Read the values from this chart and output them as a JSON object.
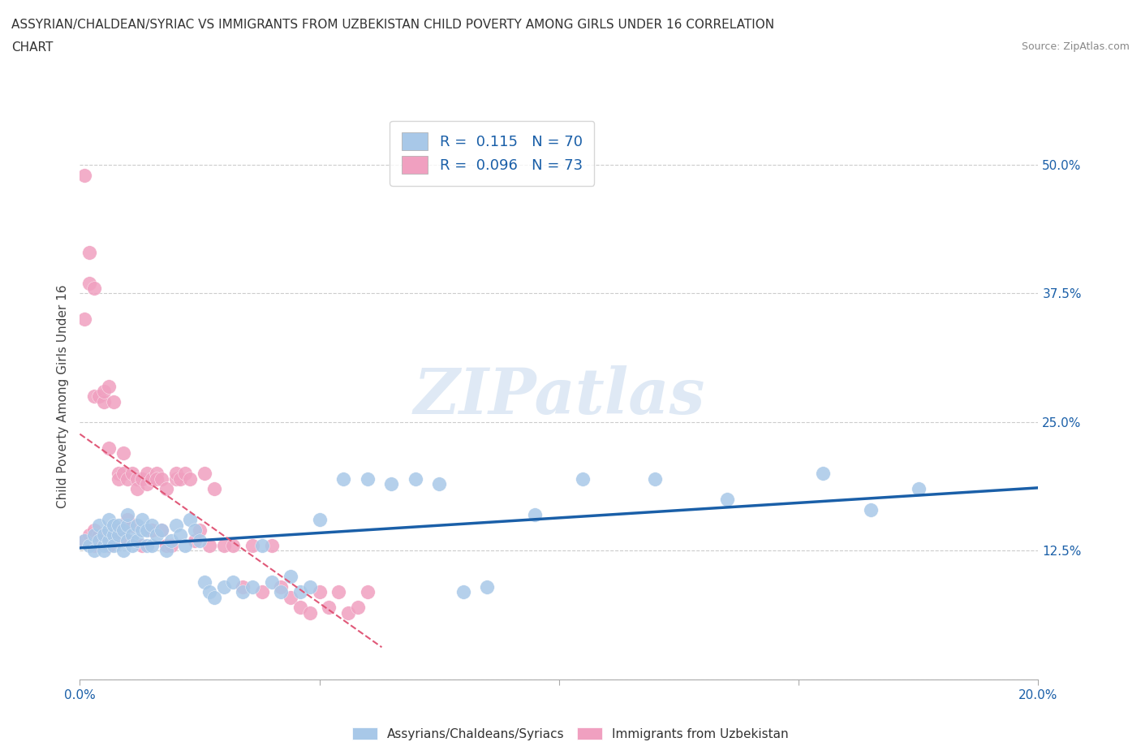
{
  "title_line1": "ASSYRIAN/CHALDEAN/SYRIAC VS IMMIGRANTS FROM UZBEKISTAN CHILD POVERTY AMONG GIRLS UNDER 16 CORRELATION",
  "title_line2": "CHART",
  "source": "Source: ZipAtlas.com",
  "ylabel": "Child Poverty Among Girls Under 16",
  "watermark": "ZIPatlas",
  "blue_R": 0.115,
  "blue_N": 70,
  "pink_R": 0.096,
  "pink_N": 73,
  "blue_color": "#a8c8e8",
  "pink_color": "#f0a0c0",
  "blue_line_color": "#1a5fa8",
  "pink_line_color": "#e05878",
  "xlim": [
    0.0,
    0.2
  ],
  "ylim": [
    0.0,
    0.55
  ],
  "yticks": [
    0.0,
    0.125,
    0.25,
    0.375,
    0.5
  ],
  "xticks": [
    0.0,
    0.05,
    0.1,
    0.15,
    0.2
  ],
  "blue_x": [
    0.001,
    0.002,
    0.003,
    0.003,
    0.004,
    0.004,
    0.005,
    0.005,
    0.005,
    0.006,
    0.006,
    0.006,
    0.007,
    0.007,
    0.007,
    0.008,
    0.008,
    0.009,
    0.009,
    0.01,
    0.01,
    0.01,
    0.011,
    0.011,
    0.012,
    0.012,
    0.013,
    0.013,
    0.014,
    0.014,
    0.015,
    0.015,
    0.016,
    0.017,
    0.018,
    0.019,
    0.02,
    0.021,
    0.022,
    0.023,
    0.024,
    0.025,
    0.026,
    0.027,
    0.028,
    0.03,
    0.032,
    0.034,
    0.036,
    0.038,
    0.04,
    0.042,
    0.044,
    0.046,
    0.048,
    0.05,
    0.055,
    0.06,
    0.065,
    0.07,
    0.075,
    0.08,
    0.085,
    0.095,
    0.105,
    0.12,
    0.135,
    0.155,
    0.165,
    0.175
  ],
  "blue_y": [
    0.135,
    0.13,
    0.125,
    0.14,
    0.135,
    0.15,
    0.13,
    0.14,
    0.125,
    0.135,
    0.145,
    0.155,
    0.14,
    0.15,
    0.13,
    0.14,
    0.15,
    0.125,
    0.145,
    0.135,
    0.15,
    0.16,
    0.14,
    0.13,
    0.15,
    0.135,
    0.145,
    0.155,
    0.13,
    0.145,
    0.15,
    0.13,
    0.14,
    0.145,
    0.125,
    0.135,
    0.15,
    0.14,
    0.13,
    0.155,
    0.145,
    0.135,
    0.095,
    0.085,
    0.08,
    0.09,
    0.095,
    0.085,
    0.09,
    0.13,
    0.095,
    0.085,
    0.1,
    0.085,
    0.09,
    0.155,
    0.195,
    0.195,
    0.19,
    0.195,
    0.19,
    0.085,
    0.09,
    0.16,
    0.195,
    0.195,
    0.175,
    0.2,
    0.165,
    0.185
  ],
  "pink_x": [
    0.001,
    0.001,
    0.002,
    0.002,
    0.003,
    0.003,
    0.003,
    0.004,
    0.004,
    0.004,
    0.005,
    0.005,
    0.005,
    0.006,
    0.006,
    0.006,
    0.007,
    0.007,
    0.007,
    0.008,
    0.008,
    0.008,
    0.009,
    0.009,
    0.01,
    0.01,
    0.01,
    0.011,
    0.011,
    0.012,
    0.012,
    0.013,
    0.013,
    0.014,
    0.014,
    0.015,
    0.015,
    0.016,
    0.016,
    0.017,
    0.017,
    0.018,
    0.018,
    0.019,
    0.02,
    0.02,
    0.021,
    0.022,
    0.023,
    0.024,
    0.025,
    0.026,
    0.027,
    0.028,
    0.03,
    0.032,
    0.034,
    0.036,
    0.038,
    0.04,
    0.042,
    0.044,
    0.046,
    0.048,
    0.05,
    0.052,
    0.054,
    0.056,
    0.058,
    0.06,
    0.001,
    0.002,
    0.003
  ],
  "pink_y": [
    0.135,
    0.49,
    0.415,
    0.14,
    0.13,
    0.145,
    0.275,
    0.275,
    0.14,
    0.135,
    0.27,
    0.28,
    0.135,
    0.13,
    0.225,
    0.285,
    0.14,
    0.135,
    0.27,
    0.145,
    0.2,
    0.195,
    0.22,
    0.2,
    0.195,
    0.135,
    0.155,
    0.15,
    0.2,
    0.195,
    0.185,
    0.195,
    0.13,
    0.2,
    0.19,
    0.195,
    0.145,
    0.2,
    0.195,
    0.195,
    0.145,
    0.13,
    0.185,
    0.13,
    0.195,
    0.2,
    0.195,
    0.2,
    0.195,
    0.135,
    0.145,
    0.2,
    0.13,
    0.185,
    0.13,
    0.13,
    0.09,
    0.13,
    0.085,
    0.13,
    0.09,
    0.08,
    0.07,
    0.065,
    0.085,
    0.07,
    0.085,
    0.065,
    0.07,
    0.085,
    0.35,
    0.385,
    0.38
  ]
}
